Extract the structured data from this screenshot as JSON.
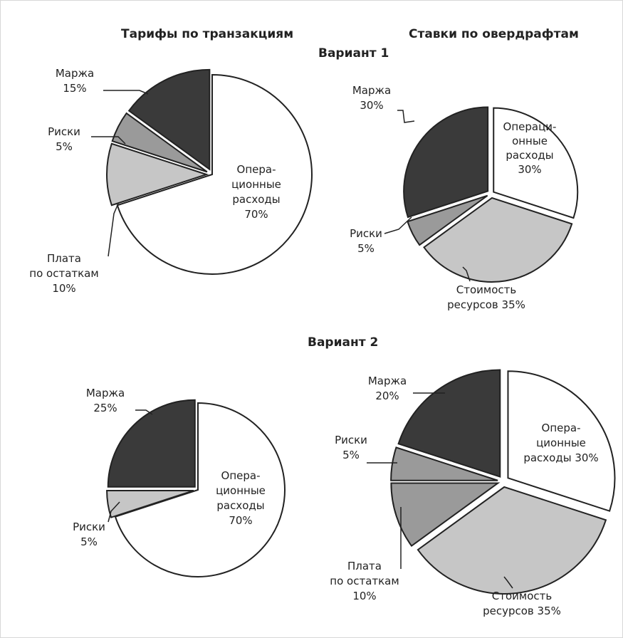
{
  "headers": {
    "left": "Тарифы по транзакциям",
    "right": "Ставки по овердрафтам",
    "variant1": "Вариант 1",
    "variant2": "Вариант 2"
  },
  "colors": {
    "dark": "#3a3a3a",
    "medium": "#9a9a9a",
    "light": "#c6c6c6",
    "white": "#ffffff",
    "stroke": "#222222"
  },
  "chart_data": [
    {
      "type": "pie",
      "group": "Вариант 1",
      "column": "Тарифы по транзакциям",
      "slices": [
        {
          "name": "Операционные расходы",
          "value": 70,
          "fill": "white",
          "label": [
            "Опера-",
            "ционные",
            "расходы",
            "70%"
          ]
        },
        {
          "name": "Плата по остаткам",
          "value": 10,
          "fill": "light",
          "label": [
            "Плата",
            "по остаткам",
            "10%"
          ]
        },
        {
          "name": "Риски",
          "value": 5,
          "fill": "medium",
          "label": [
            "Риски",
            "5%"
          ]
        },
        {
          "name": "Маржа",
          "value": 15,
          "fill": "dark",
          "label": [
            "Маржа",
            "15%"
          ]
        }
      ]
    },
    {
      "type": "pie",
      "group": "Вариант 1",
      "column": "Ставки по овердрафтам",
      "slices": [
        {
          "name": "Операционные расходы",
          "value": 30,
          "fill": "white",
          "label": [
            "Операци-",
            "онные",
            "расходы",
            "30%"
          ]
        },
        {
          "name": "Стоимость ресурсов",
          "value": 35,
          "fill": "light",
          "label": [
            "Стоимость",
            "ресурсов 35%"
          ]
        },
        {
          "name": "Риски",
          "value": 5,
          "fill": "medium",
          "label": [
            "Риски",
            "5%"
          ]
        },
        {
          "name": "Маржа",
          "value": 30,
          "fill": "dark",
          "label": [
            "Маржа",
            "30%"
          ]
        }
      ]
    },
    {
      "type": "pie",
      "group": "Вариант 2",
      "column": "Тарифы по транзакциям",
      "slices": [
        {
          "name": "Операционные расходы",
          "value": 70,
          "fill": "white",
          "label": [
            "Опера-",
            "ционные",
            "расходы",
            "70%"
          ]
        },
        {
          "name": "Риски",
          "value": 5,
          "fill": "light",
          "label": [
            "Риски",
            "5%"
          ]
        },
        {
          "name": "Маржа",
          "value": 25,
          "fill": "dark",
          "label": [
            "Маржа",
            "25%"
          ]
        }
      ]
    },
    {
      "type": "pie",
      "group": "Вариант 2",
      "column": "Ставки по овердрафтам",
      "slices": [
        {
          "name": "Операционные расходы",
          "value": 30,
          "fill": "white",
          "label": [
            "Опера-",
            "ционные",
            "расходы 30%"
          ]
        },
        {
          "name": "Стоимость ресурсов",
          "value": 35,
          "fill": "light",
          "label": [
            "Стоимость",
            "ресурсов 35%"
          ]
        },
        {
          "name": "Плата по остаткам",
          "value": 10,
          "fill": "medium",
          "label": [
            "Плата",
            "по остаткам",
            "10%"
          ]
        },
        {
          "name": "Риски",
          "value": 5,
          "fill": "medium",
          "label": [
            "Риски",
            "5%"
          ]
        },
        {
          "name": "Маржа",
          "value": 20,
          "fill": "dark",
          "label": [
            "Маржа",
            "20%"
          ]
        }
      ]
    }
  ]
}
